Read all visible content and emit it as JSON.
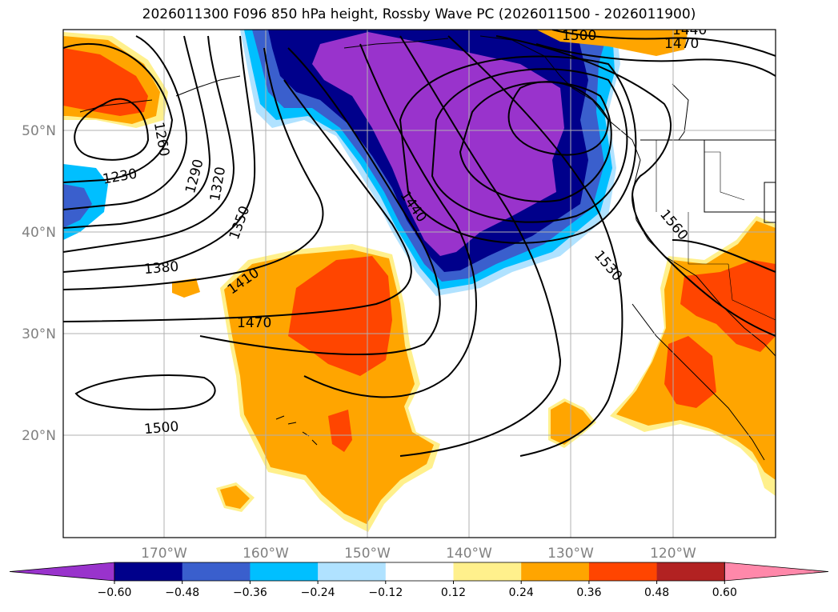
{
  "title": "2026011300 F096 850 hPa height, Rossby Wave PC (2026011500 - 2026011900)",
  "map": {
    "lon_ticks": [
      "170°W",
      "160°W",
      "150°W",
      "140°W",
      "130°W",
      "120°W"
    ],
    "lat_ticks": [
      "50°N",
      "40°N",
      "30°N",
      "20°N"
    ],
    "contour_labels": [
      "1230",
      "1260",
      "1290",
      "1320",
      "1350",
      "1380",
      "1410",
      "1440",
      "1470",
      "1470",
      "1500",
      "1500",
      "1530",
      "1560",
      "1440",
      "1470"
    ]
  },
  "colorbar": {
    "ticks": [
      "−0.60",
      "−0.48",
      "−0.36",
      "−0.24",
      "−0.12",
      "0.12",
      "0.24",
      "0.36",
      "0.48",
      "0.60"
    ],
    "colors": [
      "#9933cc",
      "#00008b",
      "#3a5fcd",
      "#00bfff",
      "#b0e2ff",
      "#ffffff",
      "#fff08c",
      "#ffa500",
      "#ff4500",
      "#b22222",
      "#ff88aa"
    ]
  },
  "colors": {
    "purple": "#9933cc",
    "navy": "#00008b",
    "royal": "#3a5fcd",
    "sky": "#00bfff",
    "lightblue": "#b0e2ff",
    "yellow": "#fff08c",
    "orange": "#ffa500",
    "redorange": "#ff4500",
    "firebrick": "#b22222",
    "pink": "#ff88aa"
  }
}
